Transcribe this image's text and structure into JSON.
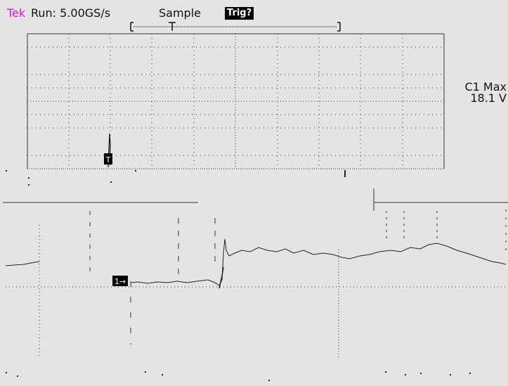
{
  "status_bar": {
    "brand": "Tek",
    "run_state": "Run: 5.00GS/s",
    "acquisition_mode": "Sample",
    "trigger_status": "Trig?"
  },
  "measurement": {
    "label": "C1 Max",
    "value": "18.1 V"
  },
  "channel_marker": {
    "label": "1→"
  },
  "trigger_marker": {
    "label": "T"
  },
  "colors": {
    "screen_background": "#e4e4e4",
    "trace": "#222222",
    "graticule": "#333333",
    "brand": "#e010e0",
    "trigger_badge": "#000000"
  }
}
